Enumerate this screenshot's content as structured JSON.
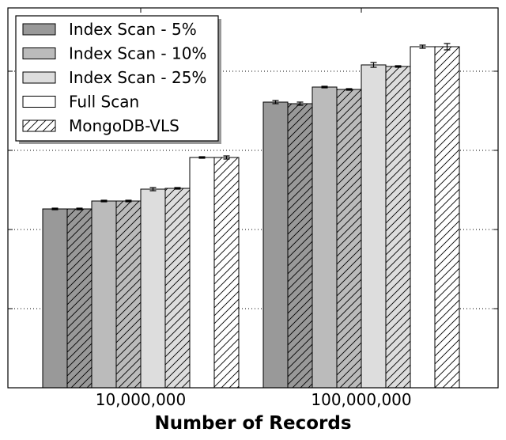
{
  "chart_data": {
    "type": "bar",
    "xlabel": "Number of Records",
    "ylabel": "",
    "ylim": [
      0,
      4.8
    ],
    "y_ticks": [
      1,
      2,
      3,
      4
    ],
    "grid": "y-dotted",
    "legend_position": "top-left",
    "categories": [
      "10,000,000",
      "100,000,000"
    ],
    "series": [
      {
        "name": "Index Scan - 5%",
        "values": [
          2.26,
          3.61
        ],
        "errors": [
          0.01,
          0.02
        ],
        "colors": [
          "#999999",
          "#999999"
        ],
        "hatched": [
          false,
          false
        ]
      },
      {
        "name": "",
        "values": [
          2.26,
          3.59
        ],
        "errors": [
          0.01,
          0.02
        ],
        "colors": [
          "#999999",
          "#999999"
        ],
        "hatched": [
          true,
          true
        ]
      },
      {
        "name": "Index Scan - 10%",
        "values": [
          2.36,
          3.8
        ],
        "errors": [
          0.01,
          0.01
        ],
        "colors": [
          "#bbbbbb",
          "#bbbbbb"
        ],
        "hatched": [
          false,
          false
        ]
      },
      {
        "name": "",
        "values": [
          2.36,
          3.77
        ],
        "errors": [
          0.01,
          0.01
        ],
        "colors": [
          "#bbbbbb",
          "#bbbbbb"
        ],
        "hatched": [
          true,
          true
        ]
      },
      {
        "name": "Index Scan - 25%",
        "values": [
          2.51,
          4.08
        ],
        "errors": [
          0.02,
          0.03
        ],
        "colors": [
          "#dddddd",
          "#dddddd"
        ],
        "hatched": [
          false,
          false
        ]
      },
      {
        "name": "",
        "values": [
          2.52,
          4.06
        ],
        "errors": [
          0.01,
          0.01
        ],
        "colors": [
          "#dddddd",
          "#dddddd"
        ],
        "hatched": [
          true,
          true
        ]
      },
      {
        "name": "Full Scan",
        "values": [
          2.91,
          4.31
        ],
        "errors": [
          0.01,
          0.02
        ],
        "colors": [
          "#ffffff",
          "#ffffff"
        ],
        "hatched": [
          false,
          false
        ]
      },
      {
        "name": "MongoDB-VLS",
        "values": [
          2.91,
          4.31
        ],
        "errors": [
          0.02,
          0.04
        ],
        "colors": [
          "#ffffff",
          "#ffffff"
        ],
        "hatched": [
          true,
          true
        ]
      }
    ],
    "legend": [
      {
        "name": "Index Scan - 5%",
        "color": "#999999",
        "hatched": false
      },
      {
        "name": "Index Scan - 10%",
        "color": "#bbbbbb",
        "hatched": false
      },
      {
        "name": "Index Scan - 25%",
        "color": "#dddddd",
        "hatched": false
      },
      {
        "name": "Full Scan",
        "color": "#ffffff",
        "hatched": false
      },
      {
        "name": "MongoDB-VLS",
        "color": "#ffffff",
        "hatched": true
      }
    ]
  }
}
